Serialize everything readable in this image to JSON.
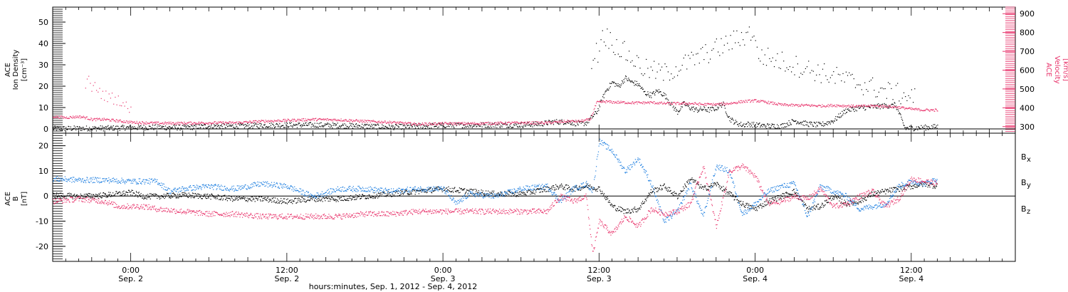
{
  "colors": {
    "black": "#000000",
    "pink": "#e8336b",
    "blue": "#1e7fe0"
  },
  "x_axis": {
    "title": "hours:minutes, Sep.  1, 2012 - Sep.  4, 2012",
    "ticks": [
      {
        "hour": 24,
        "time": "0:00",
        "date": "Sep. 2"
      },
      {
        "hour": 36,
        "time": "12:00",
        "date": "Sep. 2"
      },
      {
        "hour": 48,
        "time": "0:00",
        "date": "Sep. 3"
      },
      {
        "hour": 60,
        "time": "12:00",
        "date": "Sep. 3"
      },
      {
        "hour": 72,
        "time": "0:00",
        "date": "Sep. 4"
      },
      {
        "hour": 84,
        "time": "12:00",
        "date": "Sep. 4"
      }
    ],
    "xlim_hours": [
      18,
      92
    ]
  },
  "chart_data": [
    {
      "type": "scatter",
      "ylabel_lines": [
        "ACE",
        "Ion Density",
        "[cm⁻³]"
      ],
      "y2label_lines": [
        "ACE",
        "Velocity",
        "[km/s]"
      ],
      "ylim": [
        -2,
        57
      ],
      "y_ticks": [
        "0",
        "10",
        "20",
        "30",
        "40",
        "50"
      ],
      "y_tick_values": [
        0,
        10,
        20,
        30,
        40,
        50
      ],
      "y2lim": [
        265,
        935
      ],
      "y2_ticks": [
        "300",
        "400",
        "500",
        "600",
        "700",
        "800",
        "900"
      ],
      "y2_tick_values": [
        300,
        400,
        500,
        600,
        700,
        800,
        900
      ],
      "zero_line": true,
      "series": [
        {
          "axis": "left",
          "color": "#000000",
          "x": [
            18,
            20,
            22,
            24,
            26,
            28,
            30,
            32,
            34,
            36,
            38,
            40,
            42,
            44,
            46,
            48,
            50,
            52,
            54,
            55.5,
            56.5,
            57.5,
            58.5,
            59.0,
            59.8,
            60.5,
            61.0,
            61.5,
            62.0,
            62.5,
            63.0,
            63.5,
            64.0,
            64.5,
            65.0,
            65.5,
            66.0,
            66.5,
            67.0,
            67.5,
            68.0,
            68.5,
            69.0,
            69.5,
            70.0,
            70.5,
            71.0,
            71.5,
            72.0,
            73.0,
            74.0,
            75.0,
            76.0,
            77.0,
            78.0,
            79.0,
            80.0,
            81.0,
            82.0,
            82.8,
            83.5,
            84.0,
            85.0,
            86.0
          ],
          "y": [
            0.3,
            0.4,
            0.5,
            0.8,
            0.9,
            0.8,
            1.5,
            1.5,
            1.8,
            2.0,
            2.0,
            1.8,
            1.5,
            1.0,
            1.5,
            1.8,
            2.0,
            2.0,
            2.0,
            2.5,
            3.5,
            3.5,
            2.5,
            3.0,
            8.0,
            18.0,
            22.0,
            20.0,
            24.0,
            22.0,
            21.0,
            17.0,
            16.0,
            18.0,
            16.0,
            12.0,
            8.0,
            12.0,
            10.0,
            9.0,
            9.5,
            9.0,
            10.0,
            12.0,
            5.0,
            3.0,
            2.0,
            2.5,
            2.0,
            1.5,
            1.5,
            4.0,
            2.5,
            2.0,
            4.0,
            9.0,
            10.0,
            10.5,
            11.0,
            11.0,
            0.5,
            0.5,
            0.8,
            1.2
          ]
        },
        {
          "axis": "right",
          "color": "#e8336b",
          "x": [
            18,
            19,
            20,
            20.5,
            21,
            22,
            24,
            26,
            28,
            30,
            32,
            34,
            36,
            38,
            40,
            42,
            44,
            46,
            48,
            50,
            52,
            54,
            56,
            57.5,
            58.5,
            59.3,
            59.8,
            60.5,
            61.0,
            62.0,
            63.0,
            64.0,
            65.0,
            66.0,
            67.0,
            68.0,
            69.0,
            70.0,
            71.0,
            72.0,
            73.0,
            74.0,
            75.0,
            76.0,
            77.0,
            78.0,
            79.0,
            80.0,
            81.0,
            82.0,
            83.0,
            84.0,
            85.0,
            86.0
          ],
          "y": [
            355,
            350,
            355,
            350,
            340,
            340,
            325,
            320,
            320,
            322,
            322,
            330,
            335,
            340,
            338,
            330,
            325,
            315,
            318,
            318,
            320,
            322,
            322,
            330,
            330,
            340,
            430,
            435,
            432,
            430,
            428,
            430,
            425,
            425,
            425,
            420,
            420,
            425,
            435,
            440,
            430,
            418,
            415,
            415,
            412,
            415,
            412,
            410,
            412,
            410,
            405,
            395,
            390,
            390
          ]
        },
        {
          "axis": "right",
          "color": "#e8336b",
          "x": [
            20.5,
            20.7,
            21.0,
            21.3,
            21.8,
            23.2,
            24.0
          ],
          "y": [
            480,
            570,
            500,
            515,
            470,
            440,
            380
          ]
        },
        {
          "axis": "left",
          "color": "#000000",
          "x": [
            59.4,
            59.7,
            59.9,
            60.2,
            63.5,
            65.0,
            71.9,
            72.1,
            82.5,
            84.3
          ],
          "y": [
            33,
            37,
            35,
            45,
            28,
            26,
            46,
            35,
            17,
            15
          ]
        }
      ]
    },
    {
      "type": "scatter",
      "ylabel_lines": [
        "ACE",
        "B",
        "[nT]"
      ],
      "ylim": [
        -26,
        25
      ],
      "y_ticks": [
        "-20",
        "-10",
        "0",
        "10",
        "20"
      ],
      "y_tick_values": [
        -20,
        -10,
        0,
        10,
        20
      ],
      "zero_line": true,
      "legend_position": "right",
      "series": [
        {
          "name": "B",
          "sub": "x",
          "color": "#000000",
          "x": [
            18,
            20,
            22,
            24,
            25,
            26,
            28,
            30,
            32,
            34,
            36,
            38,
            40,
            42,
            44,
            46,
            48,
            50,
            52,
            54,
            56,
            57,
            58,
            59,
            60,
            61,
            62,
            63,
            64,
            65,
            66,
            67,
            68,
            69,
            70,
            71,
            72,
            73,
            74,
            75,
            76,
            77,
            78,
            79,
            80,
            81,
            82,
            83,
            84,
            85,
            86
          ],
          "y": [
            0.5,
            0,
            0.5,
            1.5,
            0,
            0,
            0.5,
            0,
            -1,
            -1,
            -2,
            -1,
            -1,
            0,
            1,
            2,
            3,
            2,
            1,
            1,
            3,
            4,
            3,
            4,
            3,
            -4,
            -6,
            -5,
            2,
            4,
            0,
            7,
            3,
            5,
            1,
            -3,
            -5,
            -2,
            0,
            2,
            -5,
            -4,
            0,
            -3,
            -2,
            1,
            2,
            3,
            4,
            5,
            4
          ]
        },
        {
          "name": "B",
          "sub": "y",
          "color": "#1e7fe0",
          "x": [
            18,
            20,
            22,
            24,
            26,
            27,
            28,
            30,
            32,
            34,
            36,
            38,
            40,
            42,
            44,
            46,
            48,
            49,
            50,
            52,
            54,
            56,
            57,
            58,
            59,
            59.5,
            60,
            61,
            62,
            63,
            64,
            65,
            66,
            67,
            68,
            69,
            70,
            71,
            72,
            73,
            74,
            75,
            76,
            77,
            78,
            79,
            80,
            81,
            82,
            83,
            84,
            85,
            86
          ],
          "y": [
            7,
            6.5,
            6.5,
            6,
            6,
            2,
            3,
            4,
            3,
            5,
            4,
            0,
            3,
            3,
            2,
            3,
            3,
            -3,
            1,
            0,
            3,
            4,
            -2,
            3,
            5,
            2,
            22,
            18,
            10,
            15,
            5,
            -10,
            -6,
            5,
            -8,
            12,
            10,
            -7,
            -3,
            2,
            4,
            5,
            -8,
            4,
            2,
            0,
            -5,
            -4,
            -3,
            4,
            6,
            5,
            7
          ]
        },
        {
          "name": "B",
          "sub": "z",
          "color": "#e8336b",
          "x": [
            18,
            20,
            22,
            23,
            24,
            25,
            26,
            28,
            30,
            32,
            34,
            36,
            38,
            40,
            42,
            44,
            46,
            48,
            49,
            50,
            52,
            54,
            56,
            57,
            58,
            59,
            59.5,
            60,
            61,
            62,
            63,
            64,
            65,
            66,
            67,
            68,
            69,
            70,
            71,
            72,
            73,
            74,
            75,
            76,
            77,
            78,
            79,
            80,
            81,
            82,
            83,
            84,
            85,
            86
          ],
          "y": [
            -2,
            -1,
            -2,
            -4,
            -4,
            -4,
            -5,
            -6,
            -7,
            -7,
            -8,
            -8,
            -8,
            -8,
            -7,
            -7,
            -6,
            -6,
            -6,
            -6,
            -6,
            -6,
            -6,
            0,
            -2,
            0,
            -23,
            -10,
            -15,
            -8,
            -12,
            -5,
            -7,
            -6,
            -3,
            12,
            -12,
            10,
            12,
            8,
            -3,
            -2,
            0,
            -1,
            3,
            -4,
            -3,
            0,
            2,
            -4,
            -1,
            7,
            6,
            5
          ]
        }
      ]
    }
  ]
}
